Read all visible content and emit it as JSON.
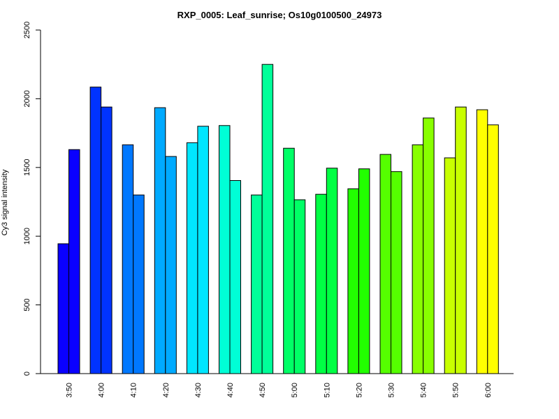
{
  "chart_data": {
    "type": "bar",
    "title": "RXP_0005: Leaf_sunrise; Os10g0100500_24973",
    "xlabel": "",
    "ylabel": "Cy3 signal intensity",
    "ylim": [
      0,
      2500
    ],
    "yticks": [
      0,
      500,
      1000,
      1500,
      2000,
      2500
    ],
    "grid": false,
    "legend": "none",
    "categories": [
      "3:50",
      "4:00",
      "4:10",
      "4:20",
      "4:30",
      "4:40",
      "4:50",
      "5:00",
      "5:10",
      "5:20",
      "5:30",
      "5:40",
      "5:50",
      "6:00"
    ],
    "group_colors": [
      "#0a00ff",
      "#0033ff",
      "#0078ff",
      "#00aaff",
      "#00e6ff",
      "#00ffd6",
      "#00ff99",
      "#00ff66",
      "#00ff44",
      "#22ff00",
      "#55ff00",
      "#88ff00",
      "#c8ff00",
      "#ffff00"
    ],
    "values": [
      [
        945,
        1630
      ],
      [
        2085,
        1940
      ],
      [
        1665,
        1300
      ],
      [
        1935,
        1580
      ],
      [
        1680,
        1800
      ],
      [
        1805,
        1405
      ],
      [
        1300,
        2250
      ],
      [
        1640,
        1265
      ],
      [
        1305,
        1495
      ],
      [
        1345,
        1490
      ],
      [
        1595,
        1470
      ],
      [
        1665,
        1860
      ],
      [
        1570,
        1940
      ],
      [
        1920,
        1810
      ]
    ]
  }
}
